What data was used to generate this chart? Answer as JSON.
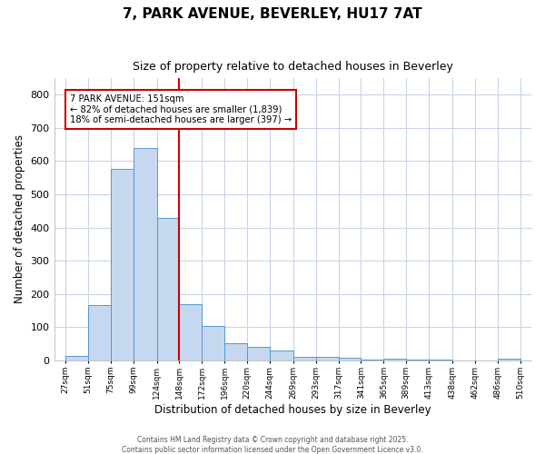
{
  "title1": "7, PARK AVENUE, BEVERLEY, HU17 7AT",
  "title2": "Size of property relative to detached houses in Beverley",
  "xlabel": "Distribution of detached houses by size in Beverley",
  "ylabel": "Number of detached properties",
  "bar_color": "#c5d8f0",
  "bar_edge_color": "#5599cc",
  "background_color": "#ffffff",
  "plot_bg_color": "#ffffff",
  "grid_color": "#c8d4e8",
  "vline_color": "#cc0000",
  "annotation_line1": "7 PARK AVENUE: 151sqm",
  "annotation_line2": "← 82% of detached houses are smaller (1,839)",
  "annotation_line3": "18% of semi-detached houses are larger (397) →",
  "annotation_box_color": "#ffffff",
  "annotation_box_edge": "#cc0000",
  "bins": [
    27,
    51,
    75,
    99,
    124,
    148,
    172,
    196,
    220,
    244,
    269,
    293,
    317,
    341,
    365,
    389,
    413,
    438,
    462,
    486,
    510
  ],
  "values": [
    15,
    168,
    577,
    638,
    430,
    170,
    103,
    52,
    40,
    30,
    12,
    10,
    8,
    3,
    5,
    3,
    3,
    0,
    0,
    5
  ],
  "tick_labels": [
    "27sqm",
    "51sqm",
    "75sqm",
    "99sqm",
    "124sqm",
    "148sqm",
    "172sqm",
    "196sqm",
    "220sqm",
    "244sqm",
    "269sqm",
    "293sqm",
    "317sqm",
    "341sqm",
    "365sqm",
    "389sqm",
    "413sqm",
    "438sqm",
    "462sqm",
    "486sqm",
    "510sqm"
  ],
  "ylim": [
    0,
    850
  ],
  "yticks": [
    0,
    100,
    200,
    300,
    400,
    500,
    600,
    700,
    800
  ],
  "footer1": "Contains HM Land Registry data © Crown copyright and database right 2025.",
  "footer2": "Contains public sector information licensed under the Open Government Licence v3.0."
}
